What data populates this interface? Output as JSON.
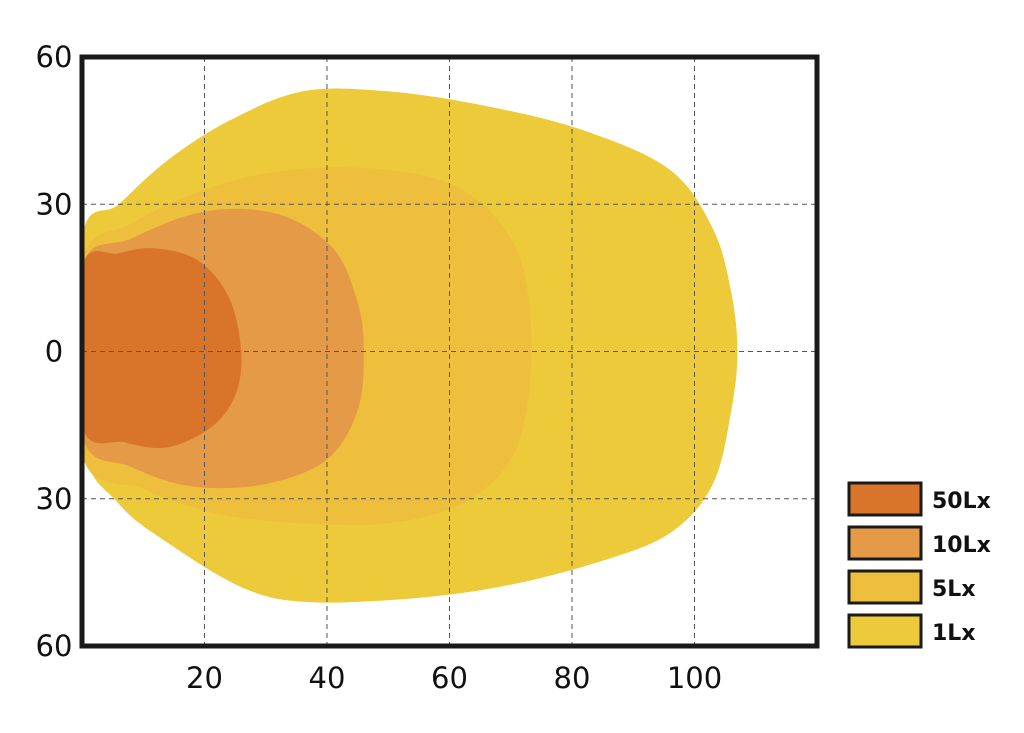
{
  "chart_data": {
    "type": "area",
    "title": "",
    "xlabel": "",
    "ylabel": "",
    "xlim": [
      0,
      120
    ],
    "ylim": [
      -60,
      60
    ],
    "x_ticks": [
      {
        "value": 20,
        "label": "20"
      },
      {
        "value": 40,
        "label": "40"
      },
      {
        "value": 60,
        "label": "60"
      },
      {
        "value": 80,
        "label": "80"
      },
      {
        "value": 100,
        "label": "100"
      }
    ],
    "y_ticks": [
      {
        "value": 60,
        "label": "60"
      },
      {
        "value": 30,
        "label": "30"
      },
      {
        "value": 0,
        "label": "0"
      },
      {
        "value": -30,
        "label": "30"
      },
      {
        "value": -60,
        "label": "60"
      }
    ],
    "grid": true,
    "legend_position": "right-bottom",
    "series": [
      {
        "name": "1Lx",
        "color": "#EDCA3A",
        "points": [
          [
            0,
            23
          ],
          [
            6,
            30
          ],
          [
            14,
            39
          ],
          [
            24,
            47
          ],
          [
            36,
            53
          ],
          [
            50,
            53
          ],
          [
            66,
            50
          ],
          [
            82,
            45
          ],
          [
            96,
            37
          ],
          [
            103,
            25
          ],
          [
            106,
            12
          ],
          [
            107,
            0
          ],
          [
            106,
            -12
          ],
          [
            103,
            -27
          ],
          [
            96,
            -37
          ],
          [
            84,
            -43
          ],
          [
            68,
            -48
          ],
          [
            52,
            -50.5
          ],
          [
            36,
            -51
          ],
          [
            26,
            -48
          ],
          [
            14,
            -39
          ],
          [
            6,
            -31
          ],
          [
            0,
            -18
          ]
        ]
      },
      {
        "name": "5Lx",
        "color": "#EDBF3C",
        "points": [
          [
            0,
            18
          ],
          [
            8,
            26
          ],
          [
            20,
            33
          ],
          [
            34,
            37
          ],
          [
            50,
            37
          ],
          [
            62,
            33
          ],
          [
            70,
            23
          ],
          [
            73,
            10
          ],
          [
            73,
            -8
          ],
          [
            70,
            -22
          ],
          [
            62,
            -31
          ],
          [
            50,
            -35
          ],
          [
            36,
            -35
          ],
          [
            22,
            -33
          ],
          [
            10,
            -28
          ],
          [
            0,
            -21
          ]
        ]
      },
      {
        "name": "10Lx",
        "color": "#E49A46",
        "points": [
          [
            0,
            17
          ],
          [
            8,
            23
          ],
          [
            20,
            28.5
          ],
          [
            32,
            28
          ],
          [
            41,
            21
          ],
          [
            45,
            10
          ],
          [
            46,
            0
          ],
          [
            45,
            -12
          ],
          [
            40,
            -22
          ],
          [
            30,
            -27
          ],
          [
            18,
            -27.5
          ],
          [
            8,
            -23.5
          ],
          [
            0,
            -17
          ]
        ]
      },
      {
        "name": "50Lx",
        "color": "#D9752A",
        "points": [
          [
            0,
            17
          ],
          [
            6,
            20
          ],
          [
            12,
            21
          ],
          [
            19,
            18.5
          ],
          [
            24,
            11
          ],
          [
            26,
            0
          ],
          [
            25,
            -9
          ],
          [
            21,
            -15.5
          ],
          [
            14,
            -19.5
          ],
          [
            7,
            -18.5
          ],
          [
            0,
            -15
          ]
        ]
      }
    ],
    "legend_entries": [
      "50Lx",
      "10Lx",
      "5Lx",
      "1Lx"
    ]
  }
}
